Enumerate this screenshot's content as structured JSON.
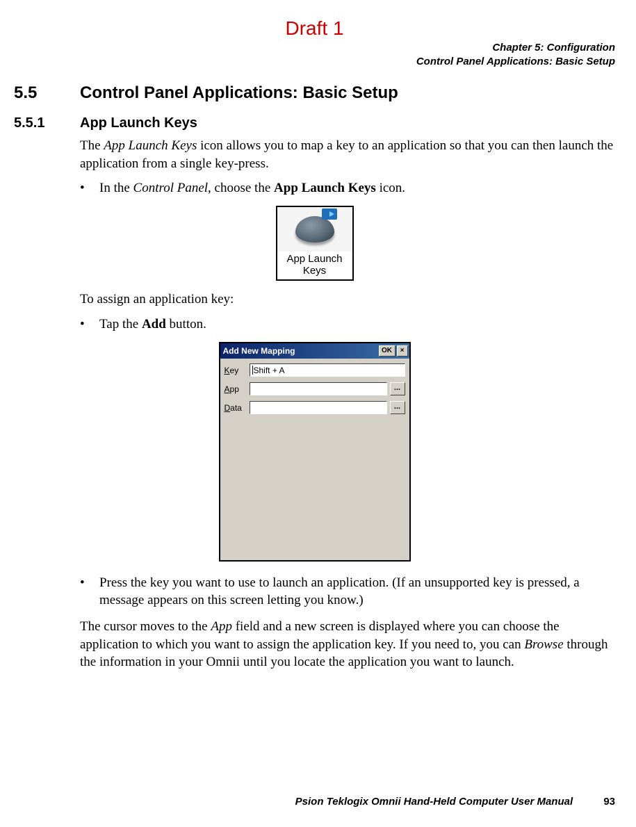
{
  "draft_label": "Draft 1",
  "chapter_line1": "Chapter 5: Configuration",
  "chapter_line2": "Control Panel Applications: Basic Setup",
  "section": {
    "num": "5.5",
    "title": "Control Panel Applications: Basic Setup"
  },
  "subsection": {
    "num": "5.5.1",
    "title": "App Launch Keys"
  },
  "para1_a": "The ",
  "para1_b_italic": "App Launch Keys",
  "para1_c": " icon allows you to map a key to an application so that you can then launch the application from a single key-press.",
  "bullet1_a": "In the ",
  "bullet1_b_italic": "Control Panel",
  "bullet1_c": ", choose the ",
  "bullet1_d_bold": "App Launch Keys",
  "bullet1_e": " icon.",
  "icon_caption_l1": "App Launch",
  "icon_caption_l2": "Keys",
  "para2": "To assign an application key:",
  "bullet2_a": "Tap the ",
  "bullet2_b_bold": "Add",
  "bullet2_c": " button.",
  "dialog": {
    "title": "Add New Mapping",
    "ok": "OK",
    "close": "×",
    "rows": {
      "key": {
        "label_u": "K",
        "label_rest": "ey",
        "value": "Shift + A",
        "has_browse": false
      },
      "app": {
        "label_u": "A",
        "label_rest": "pp",
        "value": "",
        "has_browse": true,
        "browse": "..."
      },
      "data": {
        "label_u": "D",
        "label_rest": "ata",
        "value": "",
        "has_browse": true,
        "browse": "..."
      }
    }
  },
  "bullet3": "Press the key you want to use to launch an application. (If an unsupported key is pressed, a message appears on this screen letting you know.)",
  "para3_a": "The cursor moves to the ",
  "para3_b_italic": "App",
  "para3_c": " field and a new screen is displayed where you can choose the application to which you want to assign the application key. If you need to, you can ",
  "para3_d_italic": "Browse",
  "para3_e": " through the information in your Omnii until you locate the application you want to launch.",
  "footer_text": "Psion Teklogix Omnii Hand-Held Computer User Manual",
  "page_number": "93",
  "colors": {
    "draft": "#cc0000",
    "titlebar_start": "#0a246a",
    "titlebar_end": "#3a6ea5",
    "win_gray": "#d4d0c8"
  }
}
